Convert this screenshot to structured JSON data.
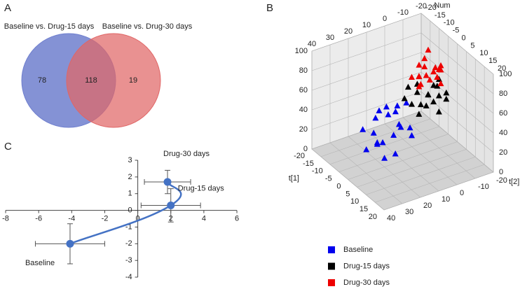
{
  "chart_data": [
    {
      "type": "venn",
      "label": "A",
      "sets": [
        {
          "name": "Baseline vs. Drug-15 days",
          "color": "#6f7fce"
        },
        {
          "name": "Baseline vs. Drug-30 days",
          "color": "#e06666"
        }
      ],
      "values": [
        78,
        118,
        19
      ]
    },
    {
      "type": "scatter3d",
      "label": "B",
      "xlabel": "t[1]",
      "ylabel": "t[2]",
      "zlabel": "Num",
      "xlim": [
        -20,
        20
      ],
      "ylim": [
        -20,
        40
      ],
      "zlim": [
        0,
        100
      ],
      "xticks": [
        -20,
        -15,
        -10,
        -5,
        0,
        5,
        10,
        15,
        20
      ],
      "yticks": [
        -20,
        -10,
        0,
        10,
        20,
        30,
        40
      ],
      "zticks": [
        0,
        20,
        40,
        60,
        80,
        100
      ],
      "grid": true,
      "legend": "bottom",
      "series": [
        {
          "name": "Baseline",
          "color": "#0000ee",
          "x": [
            -15,
            -12,
            -10,
            -8,
            -6,
            -14,
            -11,
            -9,
            -5,
            -3,
            -7,
            -13,
            -4,
            -2,
            -10,
            -6,
            -8,
            -1,
            -12,
            -4
          ],
          "y": [
            10,
            14,
            8,
            16,
            6,
            18,
            12,
            4,
            10,
            8,
            14,
            6,
            2,
            12,
            20,
            18,
            0,
            4,
            2,
            16
          ],
          "z": [
            20,
            12,
            30,
            8,
            25,
            15,
            35,
            38,
            18,
            28,
            10,
            32,
            22,
            5,
            2,
            14,
            40,
            20,
            26,
            0
          ]
        },
        {
          "name": "Drug-15 days",
          "color": "#000000",
          "x": [
            -4,
            -2,
            0,
            2,
            4,
            -1,
            1,
            3,
            5,
            -3,
            0,
            2,
            6,
            -5,
            3,
            1,
            -2,
            4
          ],
          "y": [
            -2,
            0,
            -4,
            2,
            -6,
            4,
            -8,
            0,
            -2,
            6,
            -10,
            -12,
            -4,
            2,
            4,
            -6,
            -6,
            -10
          ],
          "z": [
            64,
            60,
            58,
            55,
            62,
            52,
            66,
            54,
            60,
            56,
            70,
            58,
            50,
            62,
            48,
            68,
            54,
            56
          ]
        },
        {
          "name": "Drug-30 days",
          "color": "#ee0000",
          "x": [
            -2,
            0,
            3,
            5,
            -4,
            1,
            4,
            6,
            -1,
            2,
            7,
            0,
            3,
            -3,
            5,
            1,
            4,
            2
          ],
          "y": [
            -4,
            -2,
            0,
            -6,
            -8,
            2,
            4,
            -3,
            0,
            -5,
            2,
            -10,
            -8,
            -2,
            -6,
            6,
            -4,
            3
          ],
          "z": [
            92,
            88,
            85,
            90,
            95,
            82,
            80,
            86,
            78,
            84,
            88,
            80,
            90,
            85,
            76,
            84,
            92,
            74
          ]
        }
      ]
    },
    {
      "type": "line",
      "label": "C",
      "color": "#4472c4",
      "xlim": [
        -8,
        6
      ],
      "ylim": [
        -4,
        3
      ],
      "xticks": [
        -8,
        -6,
        -4,
        -2,
        0,
        2,
        4,
        6
      ],
      "yticks": [
        -4,
        -3,
        -2,
        -1,
        0,
        1,
        2,
        3
      ],
      "point_labels": [
        "Baseline",
        "Drug-15 days",
        "Drug-30 days"
      ],
      "x": [
        -4.1,
        2,
        1.8
      ],
      "y": [
        -2,
        0.3,
        1.7
      ],
      "xerr": [
        2.1,
        1.8,
        1.4
      ],
      "yerr": [
        1.2,
        1.0,
        0.7
      ]
    }
  ]
}
